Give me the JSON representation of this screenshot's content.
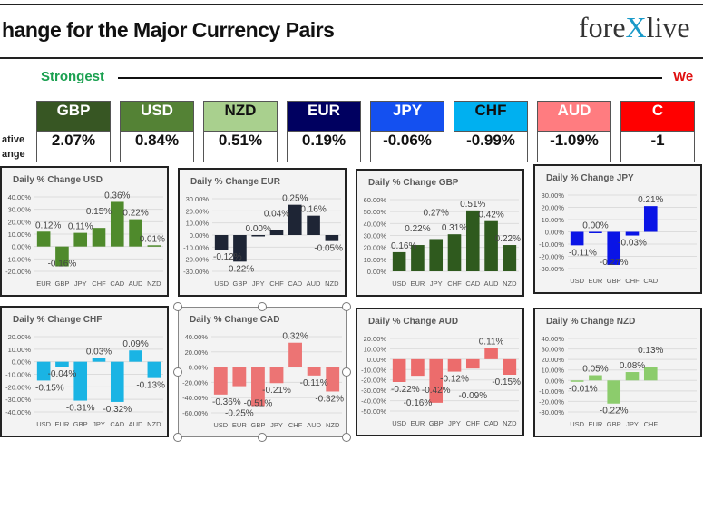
{
  "header": {
    "title": "hange for the Major Currency Pairs",
    "logo": "forexlive"
  },
  "strength": {
    "strongest_label": "Strongest",
    "weakest_label": "We",
    "row_label_1": "ative",
    "row_label_2": "ange"
  },
  "boxes": [
    {
      "currency": "GBP",
      "value": "2.07%",
      "color": "#375623",
      "text": "#ffffff"
    },
    {
      "currency": "USD",
      "value": "0.84%",
      "color": "#548235",
      "text": "#ffffff"
    },
    {
      "currency": "NZD",
      "value": "0.51%",
      "color": "#a9d08e",
      "text": "#111111"
    },
    {
      "currency": "EUR",
      "value": "0.19%",
      "color": "#000060",
      "text": "#ffffff"
    },
    {
      "currency": "JPY",
      "value": "-0.06%",
      "color": "#1450f0",
      "text": "#ffffff"
    },
    {
      "currency": "CHF",
      "value": "-0.99%",
      "color": "#00b0f0",
      "text": "#111111"
    },
    {
      "currency": "AUD",
      "value": "-1.09%",
      "color": "#ff7c80",
      "text": "#ffffff"
    },
    {
      "currency": "C",
      "value": "-1",
      "color": "#ff0000",
      "text": "#ffffff"
    }
  ],
  "chart_data": [
    {
      "type": "bar",
      "title": "Daily % Change USD",
      "categories": [
        "EUR",
        "GBP",
        "JPY",
        "CHF",
        "CAD",
        "AUD",
        "NZD"
      ],
      "values": [
        0.12,
        -0.16,
        0.11,
        0.15,
        0.36,
        0.22,
        0.01
      ],
      "ylim": [
        -0.2,
        0.4
      ],
      "ystep": 0.1,
      "color": "#4f8a2c",
      "grid": true
    },
    {
      "type": "bar",
      "title": "Daily % Change EUR",
      "categories": [
        "USD",
        "GBP",
        "JPY",
        "CHF",
        "CAD",
        "AUD",
        "NZD"
      ],
      "values": [
        -0.12,
        -0.22,
        0.0,
        0.04,
        0.25,
        0.16,
        -0.05
      ],
      "ylim": [
        -0.3,
        0.3
      ],
      "ystep": 0.1,
      "color": "#1e2535",
      "grid": true
    },
    {
      "type": "bar",
      "title": "Daily % Change GBP",
      "categories": [
        "USD",
        "EUR",
        "JPY",
        "CHF",
        "CAD",
        "AUD",
        "NZD"
      ],
      "values": [
        0.16,
        0.22,
        0.27,
        0.31,
        0.51,
        0.42,
        0.22
      ],
      "ylim": [
        0,
        0.6
      ],
      "ystep": 0.1,
      "color": "#2f5a1e",
      "grid": true
    },
    {
      "type": "bar",
      "title": "Daily % Change JPY",
      "categories": [
        "USD",
        "EUR",
        "GBP",
        "CHF",
        "CAD"
      ],
      "values": [
        -0.11,
        0.0,
        -0.27,
        -0.03,
        0.21
      ],
      "ylim": [
        -0.3,
        0.3
      ],
      "ystep": 0.1,
      "color": "#0a14e6",
      "grid": true
    },
    {
      "type": "bar",
      "title": "Daily % Change CHF",
      "categories": [
        "USD",
        "EUR",
        "GBP",
        "JPY",
        "CAD",
        "AUD",
        "NZD"
      ],
      "values": [
        -0.15,
        -0.04,
        -0.31,
        0.03,
        -0.32,
        0.09,
        -0.13
      ],
      "ylim": [
        -0.4,
        0.2
      ],
      "ystep": 0.1,
      "color": "#1ab4e4",
      "grid": true
    },
    {
      "type": "bar",
      "title": "Daily % Change CAD",
      "categories": [
        "USD",
        "EUR",
        "GBP",
        "JPY",
        "CHF",
        "AUD",
        "NZD"
      ],
      "values": [
        -0.36,
        -0.25,
        -0.51,
        -0.21,
        0.32,
        -0.11,
        -0.32
      ],
      "ylim": [
        -0.6,
        0.4
      ],
      "ystep": 0.2,
      "color": "#ec7474",
      "grid": true
    },
    {
      "type": "bar",
      "title": "Daily % Change AUD",
      "categories": [
        "USD",
        "EUR",
        "GBP",
        "JPY",
        "CHF",
        "CAD",
        "NZD"
      ],
      "values": [
        -0.22,
        -0.16,
        -0.42,
        -0.12,
        -0.09,
        0.11,
        -0.15
      ],
      "ylim": [
        -0.5,
        0.2
      ],
      "ystep": 0.1,
      "color": "#ec6c6c",
      "grid": true
    },
    {
      "type": "bar",
      "title": "Daily % Change NZD",
      "categories": [
        "USD",
        "EUR",
        "GBP",
        "JPY",
        "CHF"
      ],
      "values": [
        -0.01,
        0.05,
        -0.22,
        0.08,
        0.13
      ],
      "ylim": [
        -0.3,
        0.4
      ],
      "ystep": 0.1,
      "color": "#8ccc6c",
      "grid": true
    }
  ]
}
